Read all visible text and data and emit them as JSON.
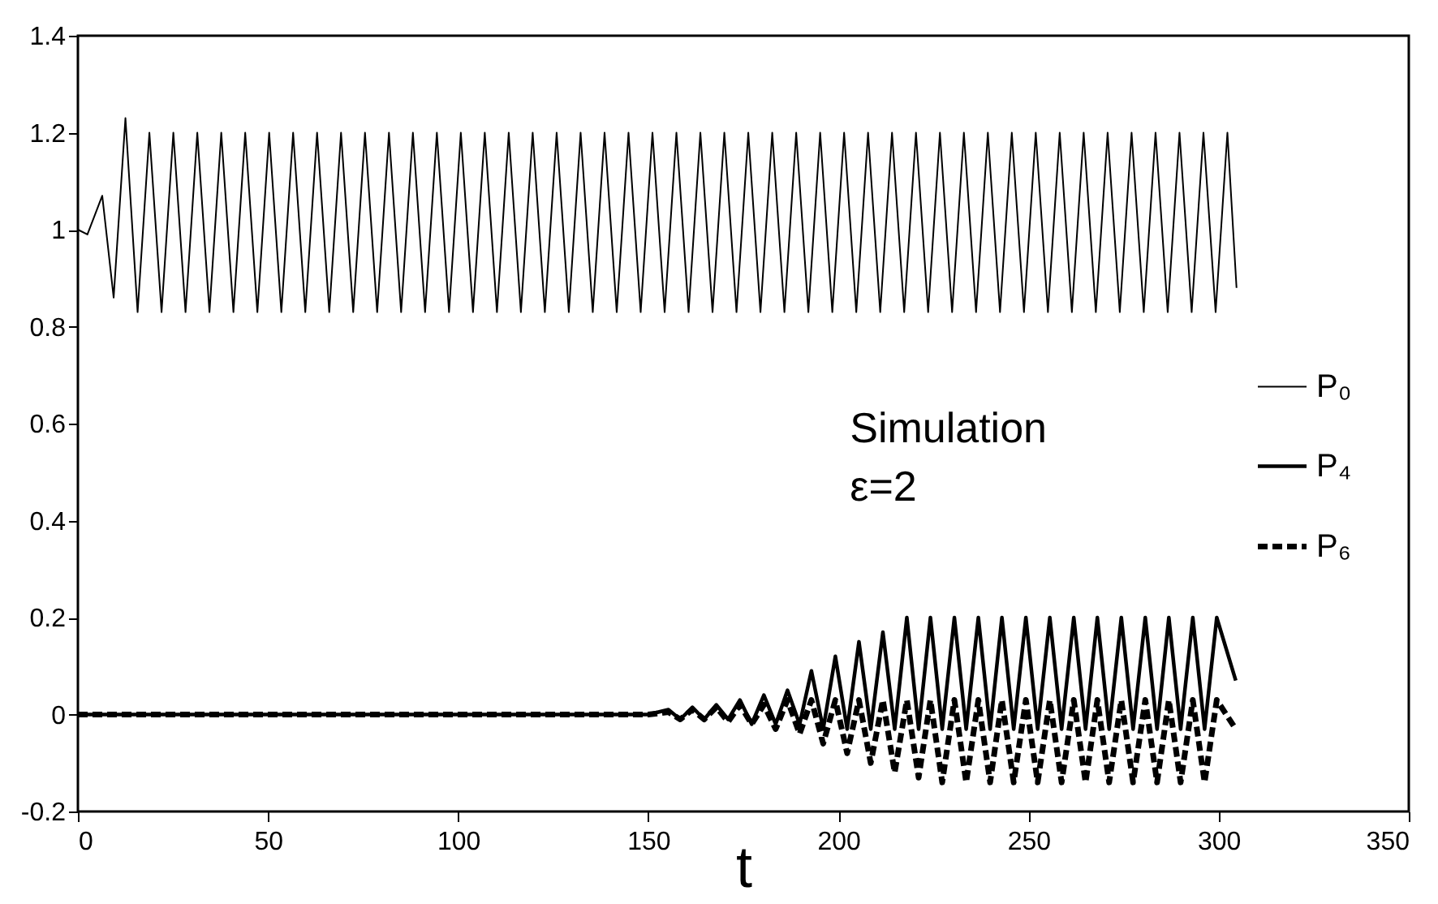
{
  "chart_data": {
    "type": "line",
    "xlabel": "t",
    "xlim": [
      0,
      350
    ],
    "xticks": [
      0,
      50,
      100,
      150,
      200,
      250,
      300,
      350
    ],
    "ylim": [
      -0.2,
      1.4
    ],
    "yticks": [
      -0.2,
      0,
      0.2,
      0.4,
      0.6,
      0.8,
      1,
      1.2,
      1.4
    ],
    "grid": false,
    "legend": "right",
    "annotations": [
      "Simulation\nε=2"
    ],
    "series": [
      {
        "name": "P₀",
        "color": "#000000",
        "line_style": "solid",
        "x": [
          0,
          2.5,
          6.4,
          9.4,
          12.5,
          15.7,
          18.8,
          22.0,
          25.1,
          28.3,
          31.4,
          34.6,
          37.7,
          40.9,
          44.0,
          47.2,
          50.3,
          53.5,
          56.6,
          59.8,
          62.9,
          66.1,
          69.2,
          72.4,
          75.5,
          78.7,
          81.8,
          85.0,
          88.1,
          91.3,
          94.4,
          97.6,
          100.7,
          103.9,
          107.0,
          110.2,
          113.3,
          116.5,
          119.6,
          122.8,
          125.9,
          129.1,
          132.2,
          135.4,
          138.5,
          141.7,
          144.8,
          148.0,
          151.1,
          154.3,
          157.4,
          160.6,
          163.7,
          166.9,
          170.0,
          173.2,
          176.3,
          179.5,
          182.6,
          185.8,
          188.9,
          192.1,
          195.2,
          198.4,
          201.5,
          204.7,
          207.8,
          211.0,
          214.1,
          217.3,
          220.4,
          223.6,
          226.7,
          229.9,
          233.0,
          236.2,
          239.3,
          242.5,
          245.6,
          248.8,
          251.9,
          255.1,
          258.2,
          261.4,
          264.5,
          267.7,
          270.8,
          274.0,
          277.1,
          280.3,
          283.4,
          286.6,
          289.7,
          292.9,
          296.0,
          299.2,
          302.3,
          304.7
        ],
        "values": [
          1.0,
          0.99,
          1.07,
          0.86,
          1.23,
          0.83,
          1.2,
          0.83,
          1.2,
          0.83,
          1.2,
          0.83,
          1.2,
          0.83,
          1.2,
          0.83,
          1.2,
          0.83,
          1.2,
          0.83,
          1.2,
          0.83,
          1.2,
          0.83,
          1.2,
          0.83,
          1.2,
          0.83,
          1.2,
          0.83,
          1.2,
          0.83,
          1.2,
          0.83,
          1.2,
          0.83,
          1.2,
          0.83,
          1.2,
          0.83,
          1.2,
          0.83,
          1.2,
          0.83,
          1.2,
          0.83,
          1.2,
          0.83,
          1.2,
          0.83,
          1.2,
          0.83,
          1.2,
          0.83,
          1.2,
          0.83,
          1.2,
          0.83,
          1.2,
          0.83,
          1.2,
          0.83,
          1.2,
          0.83,
          1.2,
          0.83,
          1.2,
          0.83,
          1.2,
          0.83,
          1.2,
          0.83,
          1.2,
          0.83,
          1.2,
          0.83,
          1.2,
          0.83,
          1.2,
          0.83,
          1.2,
          0.83,
          1.2,
          0.83,
          1.2,
          0.83,
          1.2,
          0.83,
          1.2,
          0.83,
          1.2,
          0.83,
          1.2,
          0.83,
          1.2,
          0.83,
          1.2,
          0.88
        ]
      },
      {
        "name": "P₄",
        "color": "#000000",
        "line_style": "solid",
        "x": [
          0,
          150,
          155.3,
          158.4,
          161.6,
          164.7,
          167.9,
          171.0,
          174.1,
          177.2,
          180.4,
          183.5,
          186.6,
          189.8,
          192.9,
          196.0,
          199.2,
          202.3,
          205.4,
          208.5,
          211.7,
          214.8,
          218.0,
          221.1,
          224.2,
          227.3,
          230.5,
          233.6,
          236.8,
          239.9,
          243.0,
          246.1,
          249.3,
          252.4,
          255.6,
          258.7,
          261.9,
          265.0,
          268.1,
          271.2,
          274.4,
          277.5,
          280.7,
          283.8,
          286.9,
          290.0,
          293.2,
          296.3,
          299.5,
          304.5
        ],
        "values": [
          0,
          0,
          0.01,
          -0.01,
          0.015,
          -0.01,
          0.02,
          -0.01,
          0.03,
          -0.02,
          0.04,
          -0.02,
          0.05,
          -0.02,
          0.09,
          -0.03,
          0.12,
          -0.03,
          0.15,
          -0.03,
          0.17,
          -0.03,
          0.2,
          -0.03,
          0.2,
          -0.03,
          0.2,
          -0.03,
          0.2,
          -0.03,
          0.2,
          -0.03,
          0.2,
          -0.03,
          0.2,
          -0.03,
          0.2,
          -0.03,
          0.2,
          -0.03,
          0.2,
          -0.03,
          0.2,
          -0.03,
          0.2,
          -0.03,
          0.2,
          -0.03,
          0.2,
          0.07
        ]
      },
      {
        "name": "P₆",
        "color": "#000000",
        "line_style": "dashed",
        "x": [
          0,
          150,
          155.3,
          158.4,
          161.6,
          164.7,
          167.9,
          171.0,
          174.1,
          177.2,
          180.4,
          183.5,
          186.6,
          189.8,
          192.9,
          196.0,
          199.2,
          202.3,
          205.4,
          208.5,
          211.7,
          214.8,
          218.0,
          221.1,
          224.2,
          227.3,
          230.5,
          233.6,
          236.8,
          239.9,
          243.0,
          246.1,
          249.3,
          252.4,
          255.6,
          258.7,
          261.9,
          265.0,
          268.1,
          271.2,
          274.4,
          277.5,
          280.7,
          283.8,
          286.9,
          290.0,
          293.2,
          296.3,
          299.5,
          304.5
        ],
        "values": [
          0,
          0,
          0.005,
          -0.01,
          0.01,
          -0.01,
          0.015,
          -0.015,
          0.02,
          -0.02,
          0.02,
          -0.03,
          0.03,
          -0.04,
          0.03,
          -0.06,
          0.03,
          -0.08,
          0.03,
          -0.1,
          0.03,
          -0.12,
          0.03,
          -0.13,
          0.03,
          -0.14,
          0.03,
          -0.14,
          0.03,
          -0.14,
          0.03,
          -0.14,
          0.03,
          -0.14,
          0.03,
          -0.14,
          0.03,
          -0.14,
          0.03,
          -0.14,
          0.03,
          -0.14,
          0.03,
          -0.14,
          0.03,
          -0.14,
          0.03,
          -0.14,
          0.03,
          -0.03
        ]
      }
    ]
  }
}
